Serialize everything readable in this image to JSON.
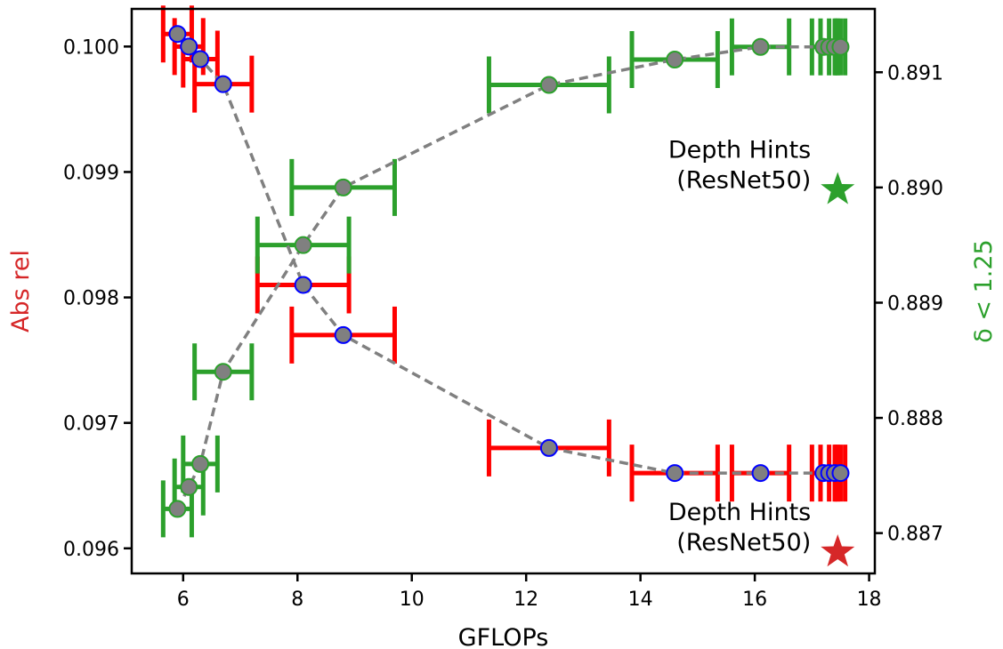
{
  "chart_data": {
    "type": "scatter",
    "xlabel": "GFLOPs",
    "ylabel_left": "Abs rel",
    "ylabel_right": "δ < 1.25",
    "xlim": [
      5.1,
      18.1
    ],
    "ylim_left": [
      0.0958,
      0.1003
    ],
    "ylim_right": [
      0.88665,
      0.89155
    ],
    "x_ticks": [
      6,
      8,
      10,
      12,
      14,
      16,
      18
    ],
    "y_ticks_left": [
      0.096,
      0.097,
      0.098,
      0.099,
      0.1
    ],
    "y_ticks_left_labels": [
      "0.096",
      "0.097",
      "0.098",
      "0.099",
      "0.100"
    ],
    "y_ticks_right": [
      0.887,
      0.888,
      0.889,
      0.89,
      0.891
    ],
    "y_ticks_right_labels": [
      "0.887",
      "0.888",
      "0.889",
      "0.890",
      "0.891"
    ],
    "colors": {
      "abs_rel": "#ff0000",
      "delta": "#2ca02c",
      "marker_fill": "#808080",
      "abs_rel_marker_edge": "#0000ff",
      "delta_marker_edge": "#2ca02c",
      "line": "#808080",
      "ylabel_left": "#d62728",
      "ylabel_right": "#2ca02c",
      "star_delta": "#2ca02c",
      "star_abs_rel": "#d62728"
    },
    "series": [
      {
        "axis": "left",
        "x": [
          5.9,
          6.1,
          6.3,
          6.7,
          8.1,
          8.8,
          12.4,
          14.6,
          16.1,
          17.2,
          17.3,
          17.4,
          17.5
        ],
        "y": [
          0.1001,
          0.1,
          0.0999,
          0.0997,
          0.0981,
          0.0977,
          0.0968,
          0.0966,
          0.0966,
          0.0966,
          0.0966,
          0.0966,
          0.0966
        ],
        "x_err": [
          0.25,
          0.25,
          0.3,
          0.5,
          0.8,
          0.9,
          1.05,
          0.75,
          0.5,
          0.2,
          0.15,
          0.1,
          0.08
        ]
      },
      {
        "axis": "right",
        "x": [
          5.9,
          6.1,
          6.3,
          6.7,
          8.1,
          8.8,
          12.4,
          14.6,
          16.1,
          17.2,
          17.3,
          17.4,
          17.5
        ],
        "y": [
          0.88721,
          0.8874,
          0.8876,
          0.8884,
          0.8895,
          0.89,
          0.89089,
          0.89111,
          0.89122,
          0.89122,
          0.89122,
          0.89122,
          0.89122
        ],
        "x_err": [
          0.25,
          0.25,
          0.3,
          0.5,
          0.8,
          0.9,
          1.05,
          0.75,
          0.5,
          0.2,
          0.15,
          0.1,
          0.08
        ]
      }
    ],
    "annotations": [
      {
        "lines": [
          "Depth Hints",
          "(ResNet50)"
        ],
        "marker": "star",
        "axis": "right",
        "x": 17.45,
        "y": 0.88998,
        "color": "#2ca02c"
      },
      {
        "lines": [
          "Depth Hints",
          "(ResNet50)"
        ],
        "marker": "star",
        "axis": "left",
        "x": 17.45,
        "y": 0.09597,
        "color": "#d62728"
      }
    ]
  }
}
